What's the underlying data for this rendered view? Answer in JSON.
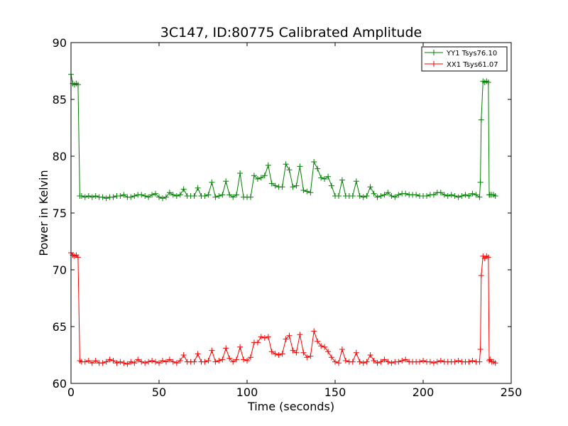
{
  "chart_data": {
    "type": "line",
    "title": "3C147, ID:80775 Calibrated Amplitude",
    "xlabel": "Time (seconds)",
    "ylabel": "Power in Kelvin",
    "xlim": [
      0,
      250
    ],
    "ylim": [
      60,
      90
    ],
    "xticks": [
      0,
      50,
      100,
      150,
      200,
      250
    ],
    "yticks": [
      60,
      65,
      70,
      75,
      80,
      85,
      90
    ],
    "grid": false,
    "legend_position": "top-right",
    "marker": "+",
    "series": [
      {
        "name": "YY1 Tsys76.10",
        "color": "#008000",
        "x": [
          0,
          1,
          2,
          3,
          4,
          5,
          6,
          8,
          10,
          12,
          14,
          16,
          18,
          20,
          22,
          24,
          26,
          28,
          30,
          32,
          34,
          36,
          38,
          40,
          42,
          44,
          46,
          48,
          50,
          52,
          54,
          56,
          58,
          60,
          62,
          64,
          66,
          68,
          70,
          72,
          74,
          76,
          78,
          80,
          82,
          84,
          86,
          88,
          90,
          92,
          94,
          96,
          98,
          100,
          102,
          104,
          106,
          108,
          110,
          112,
          114,
          116,
          118,
          120,
          122,
          124,
          126,
          128,
          130,
          132,
          134,
          136,
          138,
          140,
          142,
          144,
          146,
          148,
          150,
          152,
          154,
          156,
          158,
          160,
          162,
          164,
          166,
          168,
          170,
          172,
          174,
          176,
          178,
          180,
          182,
          184,
          186,
          188,
          190,
          192,
          194,
          196,
          198,
          200,
          202,
          204,
          206,
          208,
          210,
          212,
          214,
          216,
          218,
          220,
          222,
          224,
          226,
          228,
          230,
          232,
          232.5,
          233,
          234,
          235,
          236,
          237,
          237.5,
          238,
          239,
          240,
          241
        ],
        "y": [
          87.2,
          86.4,
          86.3,
          86.4,
          86.3,
          76.5,
          76.5,
          76.4,
          76.5,
          76.4,
          76.5,
          76.4,
          76.4,
          76.3,
          76.4,
          76.4,
          76.5,
          76.5,
          76.6,
          76.4,
          76.4,
          76.5,
          76.6,
          76.6,
          76.5,
          76.4,
          76.6,
          76.7,
          76.4,
          76.3,
          76.4,
          76.8,
          76.6,
          76.5,
          76.6,
          77.1,
          76.5,
          76.5,
          76.5,
          77.2,
          76.5,
          76.5,
          76.6,
          77.7,
          76.4,
          76.5,
          76.6,
          77.8,
          76.6,
          76.4,
          76.6,
          78.5,
          76.4,
          76.4,
          76.4,
          78.3,
          78.0,
          78.1,
          78.3,
          79.2,
          77.6,
          77.4,
          77.3,
          77.3,
          79.3,
          78.8,
          77.3,
          77.4,
          79.1,
          77.0,
          76.9,
          76.8,
          79.5,
          78.9,
          78.1,
          78.0,
          78.2,
          77.4,
          76.5,
          76.5,
          77.9,
          76.5,
          76.5,
          76.5,
          77.8,
          76.5,
          76.4,
          76.5,
          77.3,
          76.7,
          76.4,
          76.5,
          76.6,
          76.8,
          76.5,
          76.4,
          76.6,
          76.7,
          76.7,
          76.6,
          76.6,
          76.6,
          76.5,
          76.5,
          76.5,
          76.6,
          76.6,
          76.8,
          76.8,
          76.6,
          76.5,
          76.6,
          76.5,
          76.4,
          76.5,
          76.6,
          76.5,
          76.7,
          76.6,
          76.4,
          77.7,
          83.2,
          86.6,
          86.5,
          86.6,
          86.5,
          76.6,
          76.6,
          76.6,
          76.6,
          76.5
        ]
      },
      {
        "name": "XX1 Tsys61.07",
        "color": "#ff0000",
        "x": [
          0,
          1,
          2,
          3,
          4,
          5,
          6,
          8,
          10,
          12,
          14,
          16,
          18,
          20,
          22,
          24,
          26,
          28,
          30,
          32,
          34,
          36,
          38,
          40,
          42,
          44,
          46,
          48,
          50,
          52,
          54,
          56,
          58,
          60,
          62,
          64,
          66,
          68,
          70,
          72,
          74,
          76,
          78,
          80,
          82,
          84,
          86,
          88,
          90,
          92,
          94,
          96,
          98,
          100,
          102,
          104,
          106,
          108,
          110,
          112,
          114,
          116,
          118,
          120,
          122,
          124,
          126,
          128,
          130,
          132,
          134,
          136,
          138,
          140,
          142,
          144,
          146,
          148,
          150,
          152,
          154,
          156,
          158,
          160,
          162,
          164,
          166,
          168,
          170,
          172,
          174,
          176,
          178,
          180,
          182,
          184,
          186,
          188,
          190,
          192,
          194,
          196,
          198,
          200,
          202,
          204,
          206,
          208,
          210,
          212,
          214,
          216,
          218,
          220,
          222,
          224,
          226,
          228,
          230,
          232,
          232.5,
          233,
          234,
          235,
          236,
          237,
          237.5,
          238,
          239,
          240,
          241
        ],
        "y": [
          71.5,
          71.3,
          71.2,
          71.3,
          71.1,
          62.0,
          61.9,
          61.9,
          62.0,
          61.8,
          62.0,
          61.8,
          61.8,
          61.9,
          62.1,
          62.0,
          61.8,
          61.9,
          61.8,
          61.7,
          61.9,
          61.8,
          62.1,
          61.9,
          61.8,
          61.9,
          62.0,
          61.9,
          61.8,
          62.0,
          61.9,
          62.1,
          61.9,
          61.8,
          62.0,
          62.5,
          61.9,
          61.9,
          61.9,
          62.6,
          61.9,
          61.9,
          62.0,
          62.9,
          61.9,
          62.0,
          62.1,
          63.1,
          62.2,
          61.9,
          62.1,
          63.2,
          62.1,
          62.0,
          62.3,
          63.6,
          63.6,
          64.1,
          64.0,
          64.1,
          62.8,
          62.6,
          62.5,
          62.6,
          63.9,
          64.2,
          62.9,
          62.7,
          64.3,
          62.7,
          62.3,
          62.4,
          64.6,
          63.7,
          63.3,
          63.2,
          62.8,
          62.3,
          61.9,
          61.8,
          63.0,
          62.0,
          61.9,
          61.9,
          62.7,
          61.9,
          61.8,
          61.9,
          62.5,
          62.0,
          61.8,
          61.9,
          62.1,
          61.9,
          61.8,
          61.9,
          61.9,
          62.0,
          62.1,
          61.9,
          61.9,
          61.9,
          61.9,
          62.0,
          61.9,
          61.9,
          61.8,
          61.9,
          62.0,
          61.9,
          61.9,
          61.9,
          61.9,
          62.0,
          61.9,
          61.9,
          61.9,
          62.0,
          61.9,
          61.9,
          63.0,
          69.5,
          71.2,
          71.0,
          71.2,
          71.1,
          62.0,
          62.1,
          61.9,
          61.9,
          61.8
        ]
      }
    ]
  }
}
